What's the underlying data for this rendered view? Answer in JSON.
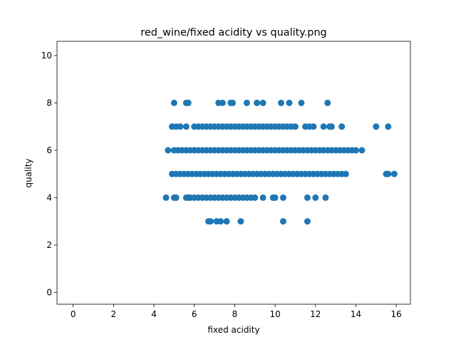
{
  "chart_data": {
    "type": "scatter",
    "title": "red_wine/fixed acidity vs quality.png",
    "x_label": "fixed acidity",
    "y_label": "quality",
    "color": "#1f77b4",
    "x": [
      6.7,
      6.8,
      7.1,
      7.3,
      7.6,
      8.3,
      10.4,
      11.6,
      4.6,
      5.0,
      5.1,
      5.6,
      5.7,
      5.8,
      6.0,
      6.2,
      6.4,
      6.6,
      6.8,
      7.0,
      7.2,
      7.4,
      7.6,
      7.8,
      8.0,
      8.2,
      8.4,
      8.6,
      8.8,
      9.0,
      9.4,
      9.9,
      10.0,
      10.4,
      11.6,
      12.0,
      12.5,
      4.9,
      5.1,
      5.3,
      5.5,
      5.7,
      5.9,
      6.1,
      6.3,
      6.5,
      6.7,
      6.9,
      7.1,
      7.3,
      7.5,
      7.7,
      7.9,
      8.1,
      8.3,
      8.5,
      8.7,
      8.9,
      9.1,
      9.3,
      9.5,
      9.7,
      9.9,
      10.1,
      10.3,
      10.5,
      10.7,
      10.9,
      11.1,
      11.3,
      11.5,
      11.7,
      11.9,
      12.1,
      12.3,
      12.5,
      12.7,
      12.9,
      13.1,
      13.3,
      13.5,
      15.5,
      15.6,
      15.9,
      4.7,
      5.0,
      5.2,
      5.4,
      5.6,
      5.8,
      6.0,
      6.2,
      6.4,
      6.6,
      6.8,
      7.0,
      7.2,
      7.4,
      7.6,
      7.8,
      8.0,
      8.2,
      8.4,
      8.6,
      8.8,
      9.0,
      9.2,
      9.4,
      9.6,
      9.8,
      10.0,
      10.2,
      10.4,
      10.6,
      10.8,
      11.0,
      11.2,
      11.4,
      11.6,
      11.8,
      12.0,
      12.2,
      12.4,
      12.6,
      12.8,
      13.0,
      13.2,
      13.4,
      13.6,
      13.8,
      14.0,
      14.3,
      4.9,
      5.1,
      5.3,
      5.6,
      6.0,
      6.2,
      6.4,
      6.6,
      6.8,
      7.0,
      7.2,
      7.4,
      7.6,
      7.8,
      8.0,
      8.2,
      8.4,
      8.6,
      8.8,
      9.0,
      9.2,
      9.4,
      9.6,
      9.8,
      10.0,
      10.2,
      10.4,
      10.6,
      10.8,
      11.0,
      11.5,
      11.7,
      11.9,
      12.4,
      12.7,
      12.8,
      13.3,
      15.0,
      15.6,
      5.0,
      5.6,
      5.7,
      7.2,
      7.4,
      7.8,
      7.9,
      8.6,
      9.1,
      9.4,
      10.3,
      10.7,
      11.3,
      12.6
    ],
    "values": [
      3,
      3,
      3,
      3,
      3,
      3,
      3,
      3,
      4,
      4,
      4,
      4,
      4,
      4,
      4,
      4,
      4,
      4,
      4,
      4,
      4,
      4,
      4,
      4,
      4,
      4,
      4,
      4,
      4,
      4,
      4,
      4,
      4,
      4,
      4,
      4,
      4,
      5,
      5,
      5,
      5,
      5,
      5,
      5,
      5,
      5,
      5,
      5,
      5,
      5,
      5,
      5,
      5,
      5,
      5,
      5,
      5,
      5,
      5,
      5,
      5,
      5,
      5,
      5,
      5,
      5,
      5,
      5,
      5,
      5,
      5,
      5,
      5,
      5,
      5,
      5,
      5,
      5,
      5,
      5,
      5,
      5,
      5,
      5,
      6,
      6,
      6,
      6,
      6,
      6,
      6,
      6,
      6,
      6,
      6,
      6,
      6,
      6,
      6,
      6,
      6,
      6,
      6,
      6,
      6,
      6,
      6,
      6,
      6,
      6,
      6,
      6,
      6,
      6,
      6,
      6,
      6,
      6,
      6,
      6,
      6,
      6,
      6,
      6,
      6,
      6,
      6,
      6,
      6,
      6,
      6,
      6,
      7,
      7,
      7,
      7,
      7,
      7,
      7,
      7,
      7,
      7,
      7,
      7,
      7,
      7,
      7,
      7,
      7,
      7,
      7,
      7,
      7,
      7,
      7,
      7,
      7,
      7,
      7,
      7,
      7,
      7,
      7,
      7,
      7,
      7,
      7,
      7,
      7,
      7,
      7,
      8,
      8,
      8,
      8,
      8,
      8,
      8,
      8,
      8,
      8,
      8,
      8,
      8,
      8
    ],
    "xlim": [
      -0.8,
      16.7
    ],
    "ylim": [
      -0.5,
      10.6
    ],
    "xticks": [
      0,
      2,
      4,
      6,
      8,
      10,
      12,
      14,
      16
    ],
    "yticks": [
      0,
      2,
      4,
      6,
      8,
      10
    ]
  }
}
